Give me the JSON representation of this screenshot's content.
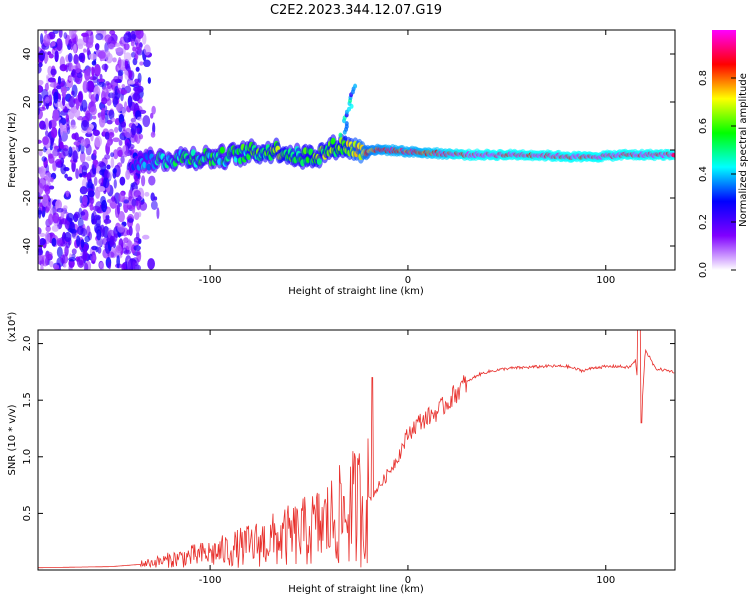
{
  "title": "C2E2.2023.344.12.07.G19",
  "chart_data": [
    {
      "type": "heatmap",
      "xlabel": "Height of straight line (km)",
      "ylabel": "Frequency (Hz)",
      "xlim": [
        -187,
        135
      ],
      "ylim": [
        -50,
        50
      ],
      "xticks": [
        -100,
        0,
        100
      ],
      "xtick_labels": [
        "-100",
        "0",
        "100"
      ],
      "yticks": [
        -40,
        -20,
        0,
        20,
        40
      ],
      "ytick_labels": [
        "-40",
        "-20",
        "0",
        "20",
        "40"
      ],
      "colorbar": {
        "label": "Normalized spectral amplitude",
        "range": [
          0,
          1
        ],
        "ticks": [
          0,
          0.2,
          0.4,
          0.6,
          0.8
        ],
        "tick_labels": [
          "0.0",
          "0.2",
          "0.4",
          "0.6",
          "0.8"
        ],
        "colors": [
          "#ffffff",
          "#8000ff",
          "#0000ff",
          "#00ffff",
          "#00ff00",
          "#ffff00",
          "#ff0000",
          "#ff00ff"
        ]
      },
      "ridge": [
        {
          "x": -140,
          "f": -5,
          "amp": 0.3
        },
        {
          "x": -125,
          "f": -4,
          "amp": 0.45
        },
        {
          "x": -110,
          "f": -3,
          "amp": 0.5
        },
        {
          "x": -95,
          "f": -3,
          "amp": 0.5
        },
        {
          "x": -80,
          "f": -1,
          "amp": 0.55
        },
        {
          "x": -65,
          "f": 0,
          "amp": 0.6
        },
        {
          "x": -55,
          "f": -3,
          "amp": 0.55
        },
        {
          "x": -45,
          "f": -2,
          "amp": 0.6
        },
        {
          "x": -35,
          "f": 2,
          "amp": 0.6
        },
        {
          "x": -25,
          "f": 0,
          "amp": 0.75
        },
        {
          "x": -10,
          "f": 0,
          "amp": 0.85
        },
        {
          "x": 5,
          "f": -1,
          "amp": 0.85
        },
        {
          "x": 30,
          "f": -2,
          "amp": 0.95
        },
        {
          "x": 60,
          "f": -2,
          "amp": 0.95
        },
        {
          "x": 90,
          "f": -3,
          "amp": 0.95
        },
        {
          "x": 110,
          "f": -2,
          "amp": 0.95
        },
        {
          "x": 135,
          "f": -2,
          "amp": 0.95
        }
      ],
      "noise_region_x": [
        -187,
        -135
      ],
      "feature": {
        "x": -33,
        "f_range": [
          5,
          27
        ]
      }
    },
    {
      "type": "line",
      "xlabel": "Height of straight line (km)",
      "ylabel": "SNR (10 * v/v)",
      "yscale_label": "(x10⁴)",
      "xlim": [
        -187,
        135
      ],
      "ylim": [
        0,
        2.12
      ],
      "xticks": [
        -100,
        0,
        100
      ],
      "xtick_labels": [
        "-100",
        "0",
        "100"
      ],
      "yticks": [
        0.5,
        1.0,
        1.5,
        2.0
      ],
      "ytick_labels": [
        "0.5",
        "1.0",
        "1.5",
        "2.0"
      ],
      "line_color": "#e8302c",
      "series": [
        {
          "x": [
            -187,
            -150,
            -135,
            -125,
            -115,
            -105,
            -95,
            -85,
            -75,
            -65,
            -55,
            -45,
            -35,
            -28,
            -20,
            -12,
            -5,
            0,
            5,
            10,
            15,
            20,
            25,
            30,
            35,
            40,
            50,
            60,
            70,
            80,
            88,
            95,
            105,
            112,
            115,
            118,
            120,
            125,
            135
          ],
          "y": [
            0.02,
            0.03,
            0.05,
            0.08,
            0.12,
            0.15,
            0.18,
            0.22,
            0.26,
            0.3,
            0.34,
            0.4,
            0.48,
            0.55,
            0.62,
            0.8,
            1.0,
            1.2,
            1.3,
            1.35,
            1.4,
            1.48,
            1.58,
            1.66,
            1.72,
            1.75,
            1.78,
            1.79,
            1.8,
            1.8,
            1.76,
            1.79,
            1.8,
            1.79,
            1.85,
            1.35,
            1.95,
            1.78,
            1.75
          ]
        }
      ]
    }
  ]
}
